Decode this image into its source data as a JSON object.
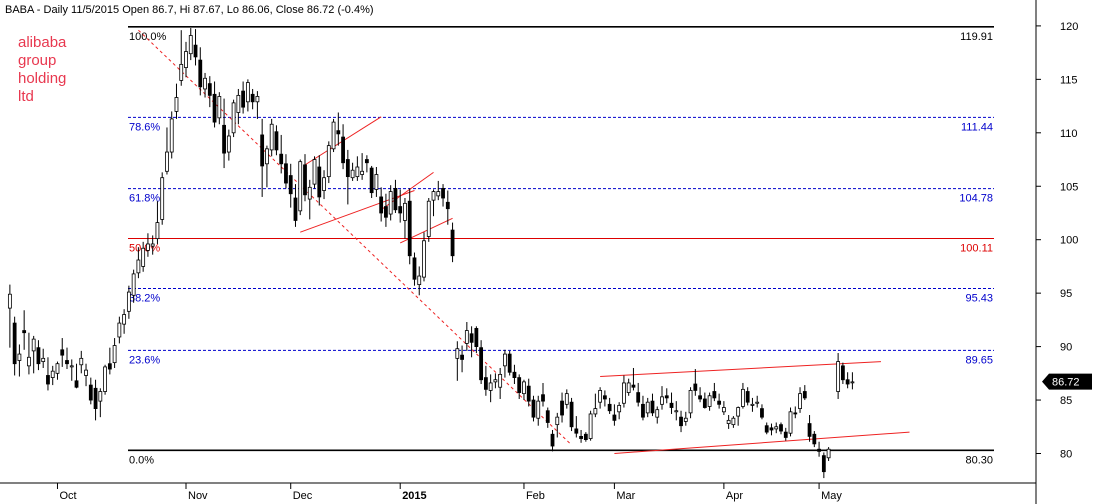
{
  "header": "BABA - Daily 11/5/2015 Open 86.7, Hi 87.67, Lo 86.06, Close 86.72 (-0.4%)",
  "annotation": [
    "alibaba",
    "group",
    "holding",
    "ltd"
  ],
  "colors": {
    "fib_blue": "#0000cc",
    "fib_red": "#dd0000",
    "trend": "#ee2222",
    "candle": "#000000",
    "last_bg": "#000000"
  },
  "chart_data": {
    "type": "candlestick",
    "ylim": [
      76,
      122
    ],
    "yticks": [
      80,
      85,
      90,
      95,
      100,
      105,
      110,
      115,
      120
    ],
    "x_index_range": [
      0,
      230
    ],
    "xticks": [
      {
        "label": "Oct",
        "i": 11
      },
      {
        "label": "Nov",
        "i": 38
      },
      {
        "label": "Dec",
        "i": 60
      },
      {
        "label": "2015",
        "i": 83
      },
      {
        "label": "Feb",
        "i": 109
      },
      {
        "label": "Mar",
        "i": 128
      },
      {
        "label": "Apr",
        "i": 151
      },
      {
        "label": "May",
        "i": 171
      }
    ],
    "fibonacci": [
      {
        "pct": "100.0%",
        "value": 119.91,
        "color": "black",
        "style": "solid"
      },
      {
        "pct": "78.6%",
        "value": 111.44,
        "color": "blue",
        "style": "dashed"
      },
      {
        "pct": "61.8%",
        "value": 104.78,
        "color": "blue",
        "style": "dashed"
      },
      {
        "pct": "50.0%",
        "value": 100.11,
        "color": "red",
        "style": "solid"
      },
      {
        "pct": "38.2%",
        "value": 95.43,
        "color": "blue",
        "style": "dashed"
      },
      {
        "pct": "23.6%",
        "value": 89.65,
        "color": "blue",
        "style": "dashed"
      },
      {
        "pct": "0.0%",
        "value": 80.3,
        "color": "black",
        "style": "solid"
      }
    ],
    "last_price": "86.72",
    "trendlines": [
      {
        "style": "dashed",
        "points": [
          [
            28,
            119.6
          ],
          [
            119,
            80.8
          ]
        ]
      },
      {
        "style": "solid",
        "points": [
          [
            63,
            107.0
          ],
          [
            79,
            111.5
          ]
        ]
      },
      {
        "style": "solid",
        "points": [
          [
            62,
            100.7
          ],
          [
            86,
            104.6
          ]
        ]
      },
      {
        "style": "solid",
        "points": [
          [
            79,
            102.8
          ],
          [
            90,
            106.3
          ]
        ]
      },
      {
        "style": "solid",
        "points": [
          [
            83,
            99.7
          ],
          [
            94,
            102.0
          ]
        ]
      },
      {
        "style": "solid",
        "points": [
          [
            125,
            87.2
          ],
          [
            184,
            88.6
          ]
        ]
      },
      {
        "style": "solid",
        "points": [
          [
            128,
            80.0
          ],
          [
            190,
            82.0
          ]
        ]
      }
    ],
    "candles": [
      [
        1,
        93.6,
        95.8,
        89.9,
        94.9
      ],
      [
        2,
        92.2,
        92.8,
        87.3,
        88.4
      ],
      [
        3,
        88.7,
        90.2,
        87.2,
        89.3
      ],
      [
        4,
        91.5,
        93.4,
        89.7,
        91.3
      ],
      [
        5,
        88.2,
        91.3,
        87.4,
        89.0
      ],
      [
        6,
        89.6,
        91.0,
        87.5,
        90.7
      ],
      [
        7,
        89.9,
        90.6,
        87.8,
        88.4
      ],
      [
        8,
        88.6,
        89.8,
        88.0,
        88.9
      ],
      [
        9,
        87.3,
        89.0,
        85.9,
        86.5
      ],
      [
        10,
        87.1,
        88.2,
        86.4,
        87.7
      ],
      [
        11,
        87.5,
        88.6,
        86.9,
        88.4
      ],
      [
        12,
        89.7,
        90.8,
        88.1,
        89.2
      ],
      [
        13,
        88.7,
        89.9,
        87.9,
        88.4
      ],
      [
        14,
        88.1,
        88.8,
        86.8,
        88.2
      ],
      [
        15,
        86.8,
        88.4,
        86.1,
        86.2
      ],
      [
        16,
        88.3,
        89.6,
        87.5,
        88.9
      ],
      [
        17,
        87.3,
        88.4,
        86.3,
        87.8
      ],
      [
        18,
        86.4,
        87.1,
        84.6,
        85.0
      ],
      [
        19,
        86.1,
        86.9,
        83.1,
        84.2
      ],
      [
        20,
        84.9,
        86.1,
        83.4,
        85.8
      ],
      [
        21,
        85.8,
        88.3,
        85.5,
        88.1
      ],
      [
        22,
        88.4,
        89.9,
        87.4,
        87.9
      ],
      [
        23,
        88.5,
        90.8,
        88.0,
        90.1
      ],
      [
        24,
        90.9,
        92.8,
        90.3,
        92.2
      ],
      [
        25,
        92.1,
        93.5,
        91.2,
        93.0
      ],
      [
        26,
        93.3,
        95.7,
        92.6,
        95.1
      ],
      [
        27,
        94.8,
        97.2,
        94.1,
        96.8
      ],
      [
        28,
        96.9,
        99.3,
        96.4,
        98.1
      ],
      [
        29,
        97.5,
        99.8,
        97.0,
        99.2
      ],
      [
        30,
        99.0,
        100.6,
        98.4,
        99.6
      ],
      [
        31,
        99.4,
        100.4,
        98.6,
        99.6
      ],
      [
        32,
        100.1,
        103.6,
        99.6,
        101.6
      ],
      [
        33,
        101.9,
        106.3,
        101.4,
        105.8
      ],
      [
        34,
        106.4,
        110.5,
        106.1,
        108.2
      ],
      [
        35,
        108.2,
        112.0,
        107.6,
        111.3
      ],
      [
        36,
        112.0,
        114.6,
        111.3,
        113.3
      ],
      [
        37,
        114.9,
        119.6,
        114.4,
        116.4
      ],
      [
        38,
        116.1,
        118.5,
        115.2,
        117.6
      ],
      [
        39,
        117.4,
        119.8,
        116.8,
        119.1
      ],
      [
        40,
        118.2,
        119.7,
        116.3,
        117.1
      ],
      [
        41,
        116.8,
        118.0,
        113.5,
        114.3
      ],
      [
        42,
        114.1,
        115.6,
        113.3,
        115.1
      ],
      [
        43,
        114.6,
        115.3,
        112.4,
        113.5
      ],
      [
        44,
        113.6,
        114.8,
        110.5,
        111.0
      ],
      [
        45,
        111.4,
        113.8,
        110.8,
        113.4
      ],
      [
        46,
        110.7,
        113.2,
        106.7,
        108.1
      ],
      [
        47,
        108.2,
        110.3,
        107.4,
        109.7
      ],
      [
        48,
        110.0,
        113.1,
        109.6,
        112.8
      ],
      [
        49,
        111.9,
        114.1,
        110.8,
        113.5
      ],
      [
        50,
        113.9,
        114.8,
        111.8,
        112.4
      ],
      [
        51,
        112.9,
        115.0,
        112.0,
        114.7
      ],
      [
        52,
        113.6,
        114.1,
        112.2,
        112.9
      ],
      [
        53,
        112.9,
        113.9,
        111.3,
        113.4
      ],
      [
        54,
        109.8,
        111.3,
        104.0,
        106.9
      ],
      [
        55,
        107.1,
        108.8,
        104.9,
        108.5
      ],
      [
        56,
        108.4,
        111.3,
        107.8,
        110.8
      ],
      [
        57,
        110.1,
        110.7,
        107.9,
        108.4
      ],
      [
        58,
        108.0,
        109.8,
        106.2,
        107.1
      ],
      [
        59,
        107.1,
        108.0,
        104.8,
        105.3
      ],
      [
        60,
        106.0,
        107.1,
        103.0,
        104.3
      ],
      [
        61,
        103.9,
        105.2,
        101.2,
        101.8
      ],
      [
        62,
        102.7,
        107.5,
        102.3,
        107.3
      ],
      [
        63,
        107.0,
        108.0,
        103.6,
        104.2
      ],
      [
        64,
        103.8,
        105.6,
        101.9,
        104.9
      ],
      [
        65,
        105.2,
        107.8,
        104.8,
        107.5
      ],
      [
        66,
        106.8,
        107.9,
        103.2,
        104.0
      ],
      [
        67,
        104.6,
        106.5,
        103.8,
        105.8
      ],
      [
        68,
        105.9,
        109.2,
        105.3,
        108.8
      ],
      [
        69,
        108.5,
        111.3,
        108.2,
        111.0
      ],
      [
        70,
        110.2,
        111.9,
        108.8,
        109.9
      ],
      [
        71,
        109.6,
        110.8,
        106.6,
        107.2
      ],
      [
        72,
        107.5,
        108.4,
        103.3,
        105.9
      ],
      [
        73,
        105.8,
        107.2,
        105.5,
        106.5
      ],
      [
        74,
        105.9,
        107.8,
        105.5,
        106.8
      ],
      [
        75,
        106.1,
        108.1,
        105.6,
        106.4
      ],
      [
        76,
        107.5,
        107.9,
        106.3,
        107.2
      ],
      [
        77,
        106.7,
        106.9,
        103.9,
        104.4
      ],
      [
        78,
        104.7,
        106.8,
        104.0,
        106.1
      ],
      [
        79,
        104.0,
        104.9,
        101.7,
        102.5
      ],
      [
        80,
        103.1,
        104.3,
        101.2,
        102.1
      ],
      [
        81,
        102.4,
        105.1,
        101.8,
        104.5
      ],
      [
        82,
        104.8,
        105.6,
        102.5,
        102.8
      ],
      [
        83,
        103.1,
        104.7,
        101.6,
        102.5
      ],
      [
        84,
        101.8,
        103.9,
        100.1,
        103.4
      ],
      [
        85,
        103.6,
        104.8,
        97.7,
        98.5
      ],
      [
        86,
        98.3,
        98.8,
        95.7,
        96.3
      ],
      [
        87,
        95.8,
        97.5,
        94.8,
        96.6
      ],
      [
        88,
        96.5,
        100.7,
        96.1,
        99.9
      ],
      [
        89,
        100.3,
        103.9,
        99.8,
        103.6
      ],
      [
        90,
        103.7,
        104.7,
        102.2,
        104.5
      ],
      [
        91,
        104.1,
        105.5,
        103.7,
        104.5
      ],
      [
        92,
        104.8,
        105.2,
        103.1,
        103.9
      ],
      [
        93,
        103.5,
        104.6,
        101.4,
        102.9
      ],
      [
        94,
        100.9,
        101.6,
        97.9,
        98.5
      ],
      [
        95,
        88.9,
        90.5,
        86.8,
        89.8
      ],
      [
        96,
        89.2,
        90.1,
        87.6,
        88.8
      ],
      [
        97,
        90.3,
        92.3,
        89.6,
        91.5
      ],
      [
        98,
        91.2,
        91.9,
        89.0,
        90.4
      ],
      [
        99,
        91.7,
        91.9,
        89.4,
        90.0
      ],
      [
        100,
        89.9,
        90.6,
        86.5,
        86.9
      ],
      [
        101,
        87.1,
        88.2,
        85.4,
        86.0
      ],
      [
        102,
        85.9,
        87.4,
        84.8,
        86.6
      ],
      [
        103,
        86.7,
        87.5,
        86.1,
        86.9
      ],
      [
        104,
        86.2,
        88.0,
        85.1,
        87.4
      ],
      [
        105,
        88.2,
        89.7,
        87.1,
        89.3
      ],
      [
        106,
        89.3,
        89.6,
        87.3,
        87.6
      ],
      [
        107,
        87.6,
        88.3,
        86.5,
        87.1
      ],
      [
        108,
        87.1,
        87.4,
        85.1,
        85.7
      ],
      [
        109,
        85.6,
        86.9,
        85.0,
        86.7
      ],
      [
        110,
        86.3,
        87.0,
        84.4,
        84.9
      ],
      [
        111,
        85.0,
        85.4,
        83.0,
        83.4
      ],
      [
        112,
        83.3,
        85.4,
        82.6,
        84.9
      ],
      [
        113,
        85.5,
        86.6,
        84.4,
        84.9
      ],
      [
        114,
        84.0,
        84.3,
        82.4,
        82.9
      ],
      [
        115,
        81.8,
        82.2,
        80.2,
        80.7
      ],
      [
        116,
        82.7,
        83.8,
        81.5,
        83.4
      ],
      [
        117,
        84.9,
        85.7,
        82.9,
        83.6
      ],
      [
        118,
        84.6,
        86.0,
        84.2,
        85.6
      ],
      [
        119,
        84.8,
        85.2,
        82.1,
        82.5
      ],
      [
        120,
        82.3,
        83.5,
        81.5,
        81.9
      ],
      [
        121,
        81.6,
        82.2,
        81.0,
        81.4
      ],
      [
        122,
        81.8,
        82.0,
        81.1,
        81.3
      ],
      [
        123,
        81.4,
        84.0,
        81.2,
        83.7
      ],
      [
        124,
        83.7,
        85.6,
        83.4,
        84.2
      ],
      [
        125,
        84.8,
        86.2,
        84.2,
        85.9
      ],
      [
        126,
        85.4,
        85.9,
        84.4,
        85.1
      ],
      [
        127,
        84.6,
        85.2,
        83.7,
        84.0
      ],
      [
        128,
        83.6,
        84.6,
        82.6,
        83.1
      ],
      [
        129,
        83.9,
        84.8,
        83.2,
        84.5
      ],
      [
        130,
        84.7,
        87.3,
        84.3,
        86.6
      ],
      [
        131,
        85.7,
        87.0,
        85.4,
        86.6
      ],
      [
        132,
        86.4,
        88.0,
        85.9,
        86.2
      ],
      [
        133,
        85.7,
        86.6,
        84.4,
        84.8
      ],
      [
        134,
        84.6,
        85.4,
        83.1,
        83.4
      ],
      [
        135,
        83.8,
        85.2,
        83.4,
        84.8
      ],
      [
        136,
        84.9,
        85.6,
        83.5,
        83.8
      ],
      [
        137,
        83.4,
        84.4,
        82.8,
        84.1
      ],
      [
        138,
        84.6,
        86.3,
        84.1,
        85.3
      ],
      [
        139,
        85.4,
        86.1,
        84.7,
        85.2
      ],
      [
        140,
        84.7,
        85.7,
        83.7,
        84.3
      ],
      [
        141,
        83.9,
        84.9,
        83.1,
        84.0
      ],
      [
        142,
        83.4,
        84.0,
        82.0,
        82.6
      ],
      [
        143,
        83.0,
        83.9,
        82.6,
        83.3
      ],
      [
        144,
        83.8,
        86.2,
        83.3,
        85.9
      ],
      [
        145,
        86.5,
        87.9,
        85.4,
        85.9
      ],
      [
        146,
        85.4,
        86.2,
        84.8,
        85.1
      ],
      [
        147,
        85.1,
        85.7,
        84.2,
        84.3
      ],
      [
        148,
        84.4,
        85.7,
        84.0,
        85.4
      ],
      [
        149,
        85.8,
        86.6,
        84.9,
        85.2
      ],
      [
        150,
        84.9,
        85.6,
        84.2,
        84.6
      ],
      [
        151,
        83.9,
        84.9,
        83.6,
        84.3
      ],
      [
        152,
        82.8,
        83.6,
        82.3,
        83.1
      ],
      [
        153,
        82.7,
        83.5,
        82.4,
        83.3
      ],
      [
        154,
        83.5,
        84.4,
        82.6,
        84.3
      ],
      [
        155,
        84.4,
        86.6,
        84.2,
        86.0
      ],
      [
        156,
        85.8,
        86.2,
        84.5,
        84.8
      ],
      [
        157,
        84.5,
        85.2,
        83.9,
        84.6
      ],
      [
        158,
        84.7,
        85.4,
        84.3,
        84.8
      ],
      [
        159,
        84.2,
        84.6,
        83.2,
        83.4
      ],
      [
        160,
        82.6,
        82.9,
        81.8,
        82.0
      ],
      [
        161,
        82.4,
        82.8,
        81.7,
        82.2
      ],
      [
        162,
        82.3,
        82.9,
        81.9,
        82.5
      ],
      [
        163,
        82.7,
        82.9,
        81.8,
        82.1
      ],
      [
        164,
        82.0,
        82.4,
        81.2,
        81.5
      ],
      [
        165,
        81.9,
        84.3,
        81.6,
        83.9
      ],
      [
        166,
        83.8,
        84.4,
        83.3,
        83.7
      ],
      [
        167,
        84.2,
        86.2,
        83.8,
        85.6
      ],
      [
        168,
        85.8,
        86.4,
        85.0,
        85.2
      ],
      [
        169,
        82.8,
        83.6,
        81.1,
        81.6
      ],
      [
        170,
        81.8,
        82.1,
        80.6,
        80.9
      ],
      [
        171,
        80.4,
        81.1,
        79.7,
        80.2
      ],
      [
        172,
        79.8,
        80.1,
        77.7,
        78.3
      ],
      [
        173,
        79.6,
        80.6,
        79.3,
        80.4
      ],
      [
        175,
        85.8,
        89.4,
        85.1,
        88.6
      ],
      [
        176,
        88.2,
        88.5,
        86.5,
        86.9
      ],
      [
        177,
        86.9,
        87.6,
        86.1,
        86.5
      ],
      [
        178,
        86.7,
        87.6,
        86.0,
        86.7
      ]
    ]
  }
}
